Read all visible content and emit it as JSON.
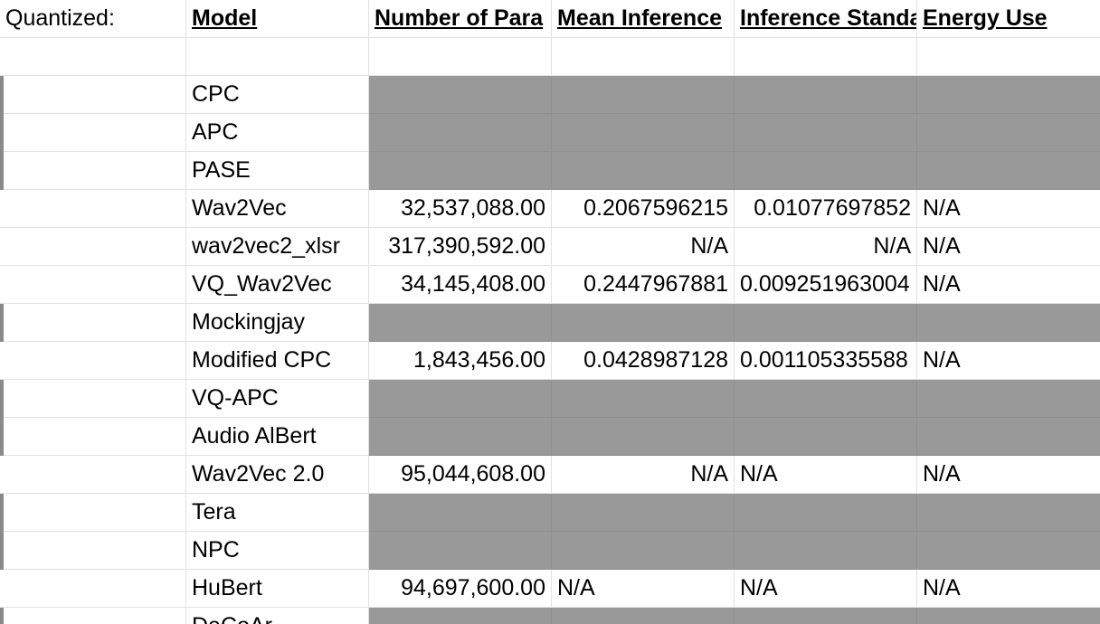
{
  "header": {
    "quantized_label": "Quantized:",
    "columns": [
      "Model",
      "Number of Para",
      "Mean Inference",
      "Inference Standa",
      "Energy Use"
    ]
  },
  "rows": [
    {
      "model": "CPC",
      "params": "",
      "mean": "",
      "std": "",
      "energy": "",
      "gray": true
    },
    {
      "model": "APC",
      "params": "",
      "mean": "",
      "std": "",
      "energy": "",
      "gray": true
    },
    {
      "model": "PASE",
      "params": "",
      "mean": "",
      "std": "",
      "energy": "",
      "gray": true
    },
    {
      "model": "Wav2Vec",
      "params": "32,537,088.00",
      "mean": "0.2067596215",
      "std": "0.01077697852",
      "energy": "N/A",
      "gray": false,
      "std_align": "r"
    },
    {
      "model": "wav2vec2_xlsr",
      "params": "317,390,592.00",
      "mean": "N/A",
      "std": "N/A",
      "energy": "N/A",
      "gray": false,
      "std_align": "r"
    },
    {
      "model": "VQ_Wav2Vec",
      "params": "34,145,408.00",
      "mean": "0.2447967881",
      "std": "0.009251963004",
      "energy": "N/A",
      "gray": false,
      "std_align": "l"
    },
    {
      "model": "Mockingjay",
      "params": "",
      "mean": "",
      "std": "",
      "energy": "",
      "gray": true
    },
    {
      "model": "Modified CPC",
      "params": "1,843,456.00",
      "mean": "0.0428987128",
      "std": "0.001105335588",
      "energy": "N/A",
      "gray": false,
      "std_align": "l"
    },
    {
      "model": "VQ-APC",
      "params": "",
      "mean": "",
      "std": "",
      "energy": "",
      "gray": true
    },
    {
      "model": "Audio AlBert",
      "params": "",
      "mean": "",
      "std": "",
      "energy": "",
      "gray": true
    },
    {
      "model": "Wav2Vec 2.0",
      "params": "95,044,608.00",
      "mean": "N/A",
      "std": "N/A",
      "energy": "N/A",
      "gray": false,
      "mean_align": "r",
      "std_align": "l"
    },
    {
      "model": "Tera",
      "params": "",
      "mean": "",
      "std": "",
      "energy": "",
      "gray": true
    },
    {
      "model": "NPC",
      "params": "",
      "mean": "",
      "std": "",
      "energy": "",
      "gray": true
    },
    {
      "model": "HuBert",
      "params": "94,697,600.00",
      "mean": "N/A",
      "std": "N/A",
      "energy": "N/A",
      "gray": false,
      "mean_align": "l",
      "std_align": "l"
    },
    {
      "model": "DeCoAr",
      "params": "",
      "mean": "",
      "std": "",
      "energy": "",
      "gray": true
    }
  ],
  "colors": {
    "gray_fill": "#999999",
    "grid": "#e2e2e2",
    "text": "#000000"
  }
}
